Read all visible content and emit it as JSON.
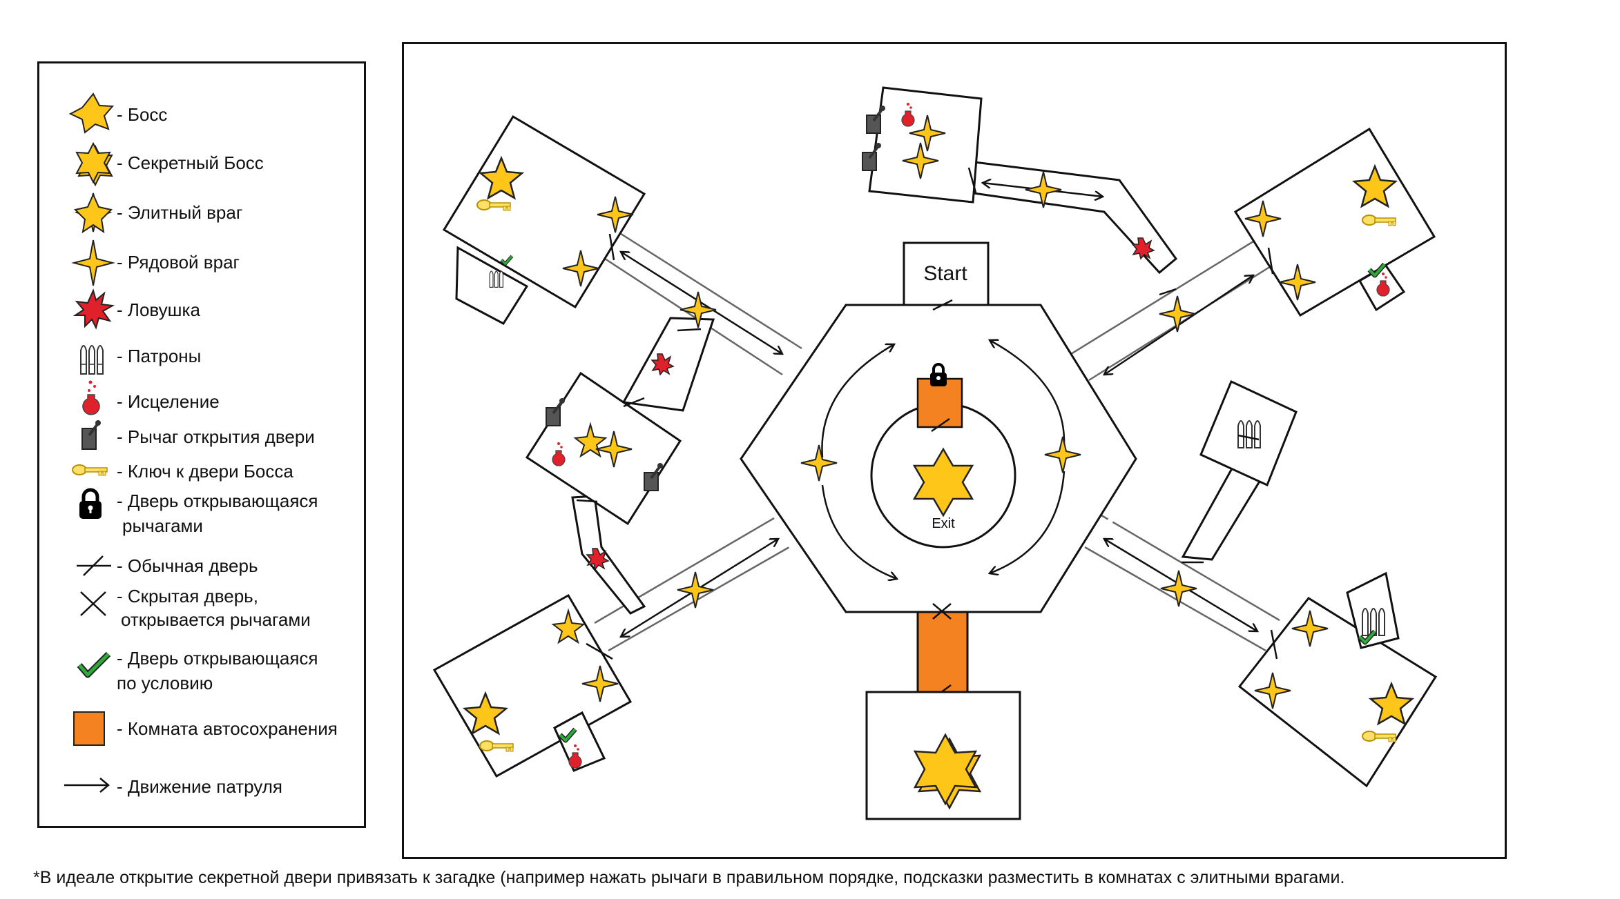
{
  "legend": {
    "items": [
      {
        "icon": "boss-star-icon",
        "label": "- Босс"
      },
      {
        "icon": "secret-boss-star-icon",
        "label": "- Секретный Босс"
      },
      {
        "icon": "elite-star-icon",
        "label": "- Элитный враг"
      },
      {
        "icon": "regular-enemy-star-icon",
        "label": "- Рядовой враг"
      },
      {
        "icon": "trap-icon",
        "label": "- Ловушка"
      },
      {
        "icon": "ammo-icon",
        "label": "- Патроны"
      },
      {
        "icon": "healing-potion-icon",
        "label": "- Исцеление"
      },
      {
        "icon": "lever-icon",
        "label": "- Рычаг открытия двери"
      },
      {
        "icon": "key-icon",
        "label": "- Ключ к двери Босса"
      },
      {
        "icon": "lock-icon",
        "label": "- Дверь открывающаяся",
        "label2": "рычагами"
      },
      {
        "icon": "normal-door-icon",
        "label": "- Обычная дверь"
      },
      {
        "icon": "hidden-door-icon",
        "label": "- Скрытая дверь,",
        "label2": "открывается рычагами"
      },
      {
        "icon": "checkmark-icon",
        "label": "- Дверь открывающаяся",
        "label2": "по условию"
      },
      {
        "icon": "autosave-square-icon",
        "label": "- Комната автосохранения"
      },
      {
        "icon": "patrol-arrow-icon",
        "label": "- Движение патруля"
      }
    ]
  },
  "map": {
    "start_label": "Start",
    "exit_label": "Exit",
    "colors": {
      "star": "#FFC61A",
      "autosave": "#F58220",
      "trap": "#E0202A",
      "check": "#2EAA3C",
      "lever": "#555555"
    }
  },
  "footnote": "*В идеале открытие секретной двери привязать к загадке (например нажать рычаги в правильном порядке, подсказки разместить в комнатах с элитными врагами."
}
